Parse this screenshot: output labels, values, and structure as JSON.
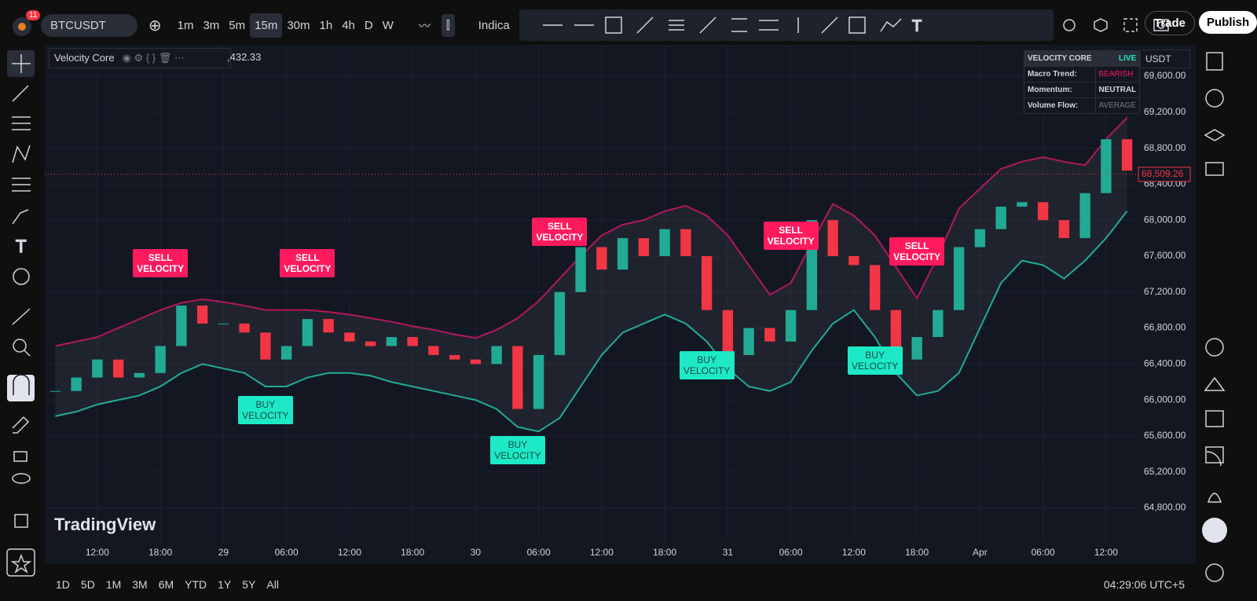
{
  "toolbar": {
    "notifications": "11",
    "symbol": "BTCUSDT",
    "intervals": [
      "1m",
      "3m",
      "5m",
      "15m",
      "30m",
      "1h",
      "4h",
      "D",
      "W"
    ],
    "indicators": "Indica",
    "trade": "Trade",
    "publish": "Publish"
  },
  "legend": {
    "name": "Velocity Core",
    "price_fragment": ",432.33"
  },
  "status_table": {
    "rows": [
      [
        "VELOCITY CORE",
        "LIVE"
      ],
      [
        "Macro Trend:",
        "BEARISH"
      ],
      [
        "Momentum:",
        "NEUTRAL"
      ],
      [
        "Volume Flow:",
        "AVERAGE"
      ]
    ]
  },
  "currency": "USDT",
  "watermark": "TradingView",
  "bottom_bar": {
    "ranges": [
      "1D",
      "5D",
      "1M",
      "3M",
      "6M",
      "YTD",
      "1Y",
      "5Y",
      "All"
    ],
    "clock": "04:29:06 UTC+5"
  },
  "chart_data": {
    "type": "candlestick",
    "categories": [
      null,
      null,
      "12:00",
      null,
      null,
      "18:00",
      null,
      null,
      "29",
      null,
      null,
      "06:00",
      null,
      null,
      "12:00",
      null,
      null,
      "18:00",
      null,
      null,
      "30",
      null,
      null,
      "06:00",
      null,
      null,
      "12:00",
      null,
      null,
      "18:00",
      null,
      null,
      "31",
      null,
      null,
      "06:00",
      null,
      null,
      "12:00",
      null,
      null,
      "18:00",
      null,
      null,
      "Apr",
      null,
      null,
      "06:00",
      null,
      null,
      "12:00",
      null
    ],
    "values": [
      66100,
      66250,
      66450,
      66250,
      66300,
      66600,
      67050,
      66850,
      66850,
      66750,
      66450,
      66600,
      66900,
      66750,
      66650,
      66600,
      66700,
      66600,
      66500,
      66450,
      66400,
      66600,
      65900,
      66500,
      67200,
      67700,
      67450,
      67800,
      67600,
      67900,
      67600,
      67000,
      66500,
      66800,
      66650,
      67000,
      68000,
      67600,
      67500,
      67000,
      66450,
      66700,
      67000,
      67700,
      67900,
      68150,
      68200,
      68000,
      67800,
      68300,
      68900,
      68550
    ],
    "upper_band": [
      66600,
      66650,
      66700,
      66800,
      66900,
      67000,
      67080,
      67120,
      67090,
      67050,
      67000,
      67000,
      67000,
      66980,
      66950,
      66910,
      66870,
      66820,
      66780,
      66730,
      66690,
      66780,
      66910,
      67100,
      67350,
      67600,
      67830,
      67950,
      68000,
      68100,
      68160,
      68050,
      67830,
      67500,
      67170,
      67300,
      67750,
      68180,
      68050,
      67830,
      67480,
      67130,
      67600,
      68130,
      68350,
      68570,
      68650,
      68700,
      68650,
      68610,
      68900,
      69140
    ],
    "lower_band": [
      65820,
      65870,
      65950,
      66000,
      66050,
      66150,
      66300,
      66400,
      66350,
      66300,
      66150,
      66150,
      66250,
      66300,
      66300,
      66270,
      66200,
      66150,
      66100,
      66050,
      66000,
      65900,
      65700,
      65650,
      65800,
      66150,
      66500,
      66750,
      66850,
      66950,
      66850,
      66650,
      66350,
      66150,
      66100,
      66200,
      66550,
      66850,
      67000,
      66700,
      66300,
      66050,
      66100,
      66300,
      66800,
      67300,
      67550,
      67500,
      67350,
      67550,
      67800,
      68100
    ],
    "sell_signals": [
      null,
      null,
      null,
      null,
      null,
      "SELL VELOCITY",
      null,
      null,
      null,
      null,
      null,
      null,
      "SELL VELOCITY",
      null,
      null,
      null,
      null,
      null,
      null,
      null,
      null,
      null,
      null,
      null,
      "SELL VELOCITY",
      null,
      null,
      null,
      null,
      null,
      null,
      null,
      null,
      null,
      null,
      "SELL VELOCITY",
      null,
      null,
      null,
      null,
      null,
      "SELL VELOCITY",
      null,
      null,
      null,
      null,
      null,
      null,
      null,
      null,
      null,
      null
    ],
    "buy_signals": [
      null,
      null,
      null,
      null,
      null,
      null,
      null,
      null,
      null,
      null,
      "BUY VELOCITY",
      null,
      null,
      null,
      null,
      null,
      null,
      null,
      null,
      null,
      null,
      null,
      "BUY VELOCITY",
      null,
      null,
      null,
      null,
      null,
      null,
      null,
      null,
      "BUY VELOCITY",
      null,
      null,
      null,
      null,
      null,
      null,
      null,
      "BUY VELOCITY",
      null,
      null,
      null,
      null,
      null,
      null,
      null,
      null,
      null,
      null,
      null,
      null
    ],
    "up_color": "#22ab94",
    "down_color": "#f23645",
    "upper_color": "#b2185a",
    "lower_color": "#22ab94",
    "sell_color": "#ff1a5e",
    "buy_color": "#1de9c6",
    "ylim": [
      64420,
      69950
    ],
    "yticks": [
      {
        "value": 64800,
        "label": "64,800.00"
      },
      {
        "value": 65200,
        "label": "65,200.00"
      },
      {
        "value": 65600,
        "label": "65,600.00"
      },
      {
        "value": 66000,
        "label": "66,000.00"
      },
      {
        "value": 66400,
        "label": "66,400.00"
      },
      {
        "value": 66800,
        "label": "66,800.00"
      },
      {
        "value": 67200,
        "label": "67,200.00"
      },
      {
        "value": 67600,
        "label": "67,600.00"
      },
      {
        "value": 68000,
        "label": "68,000.00"
      },
      {
        "value": 68400,
        "label": "68,400.00"
      },
      {
        "value": 68800,
        "label": "68,800.00"
      },
      {
        "value": 69200,
        "label": "69,200.00"
      },
      {
        "value": 69600,
        "label": "69,600.00"
      }
    ],
    "last_price": {
      "value": 68509.26,
      "label": "68,509.26"
    },
    "grid": true
  }
}
